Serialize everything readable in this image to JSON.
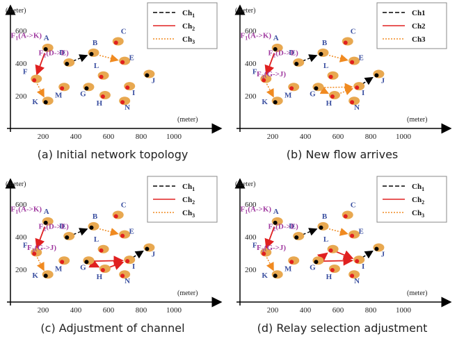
{
  "panels": [
    {
      "caption": "(a)  Initial network topology",
      "y_unit": "(meter)",
      "x_unit": "(meter)",
      "yticks": [
        "600",
        "400",
        "200"
      ],
      "xticks": [
        "200",
        "400",
        "600",
        "800",
        "1000"
      ],
      "legend": [
        {
          "name": "Ch",
          "sub": "1"
        },
        {
          "name": "Ch",
          "sub": "2"
        },
        {
          "name": "Ch",
          "sub": "3"
        }
      ],
      "flows": [
        {
          "name": "F",
          "sub": "1",
          "route": "(A->K)"
        },
        {
          "name": "F",
          "sub": "2",
          "route": "(D->E)"
        }
      ],
      "nodes": [
        "A",
        "B",
        "C",
        "D",
        "E",
        "F",
        "G",
        "H",
        "I",
        "J",
        "K",
        "L",
        "M",
        "N"
      ]
    },
    {
      "caption": "(b)  New flow arrives",
      "y_unit": "(meter)",
      "x_unit": "(meter)",
      "yticks": [
        "600",
        "400",
        "200"
      ],
      "xticks": [
        "200",
        "400",
        "600",
        "800",
        "1000"
      ],
      "legend": [
        {
          "name": "Ch1"
        },
        {
          "name": "Ch2"
        },
        {
          "name": "Ch3"
        }
      ],
      "flows": [
        {
          "name": "F",
          "sub": "1",
          "route": "(A->K)"
        },
        {
          "name": "F",
          "sub": "2",
          "route": "(D->E)"
        },
        {
          "name": "F",
          "sub": "3",
          "route": "(G->J)"
        }
      ],
      "nodes": [
        "A",
        "B",
        "C",
        "D",
        "E",
        "F",
        "G",
        "H",
        "I",
        "J",
        "K",
        "L",
        "M",
        "N"
      ]
    },
    {
      "caption": "(c)  Adjustment of channel",
      "y_unit": "(meter)",
      "x_unit": "(meter)",
      "yticks": [
        "600",
        "400",
        "200"
      ],
      "xticks": [
        "200",
        "400",
        "600",
        "800",
        "1000"
      ],
      "legend": [
        {
          "name": "Ch",
          "sub": "1"
        },
        {
          "name": "Ch",
          "sub": "2"
        },
        {
          "name": "Ch",
          "sub": "3"
        }
      ],
      "flows": [
        {
          "name": "F",
          "sub": "1",
          "route": "(A->K)"
        },
        {
          "name": "F",
          "sub": "2",
          "route": "(D->E)"
        },
        {
          "name": "F",
          "sub": "3",
          "route": "(G->J)"
        }
      ],
      "nodes": [
        "A",
        "B",
        "C",
        "D",
        "E",
        "F",
        "G",
        "H",
        "I",
        "J",
        "K",
        "L",
        "M",
        "N"
      ]
    },
    {
      "caption": "(d)  Relay selection adjustment",
      "y_unit": "(meter)",
      "x_unit": "(meter)",
      "yticks": [
        "600",
        "400",
        "200"
      ],
      "xticks": [
        "200",
        "400",
        "600",
        "800",
        "1000"
      ],
      "legend": [
        {
          "name": "Ch",
          "sub": "1"
        },
        {
          "name": "Ch",
          "sub": "2"
        },
        {
          "name": "Ch",
          "sub": "3"
        }
      ],
      "flows": [
        {
          "name": "F",
          "sub": "1",
          "route": "(A->K)"
        },
        {
          "name": "F",
          "sub": "2",
          "route": "(D->E)"
        },
        {
          "name": "F",
          "sub": "3",
          "route": "(G->J)"
        }
      ],
      "nodes": [
        "A",
        "B",
        "C",
        "D",
        "E",
        "F",
        "G",
        "H",
        "I",
        "J",
        "K",
        "L",
        "M",
        "N"
      ]
    }
  ]
}
